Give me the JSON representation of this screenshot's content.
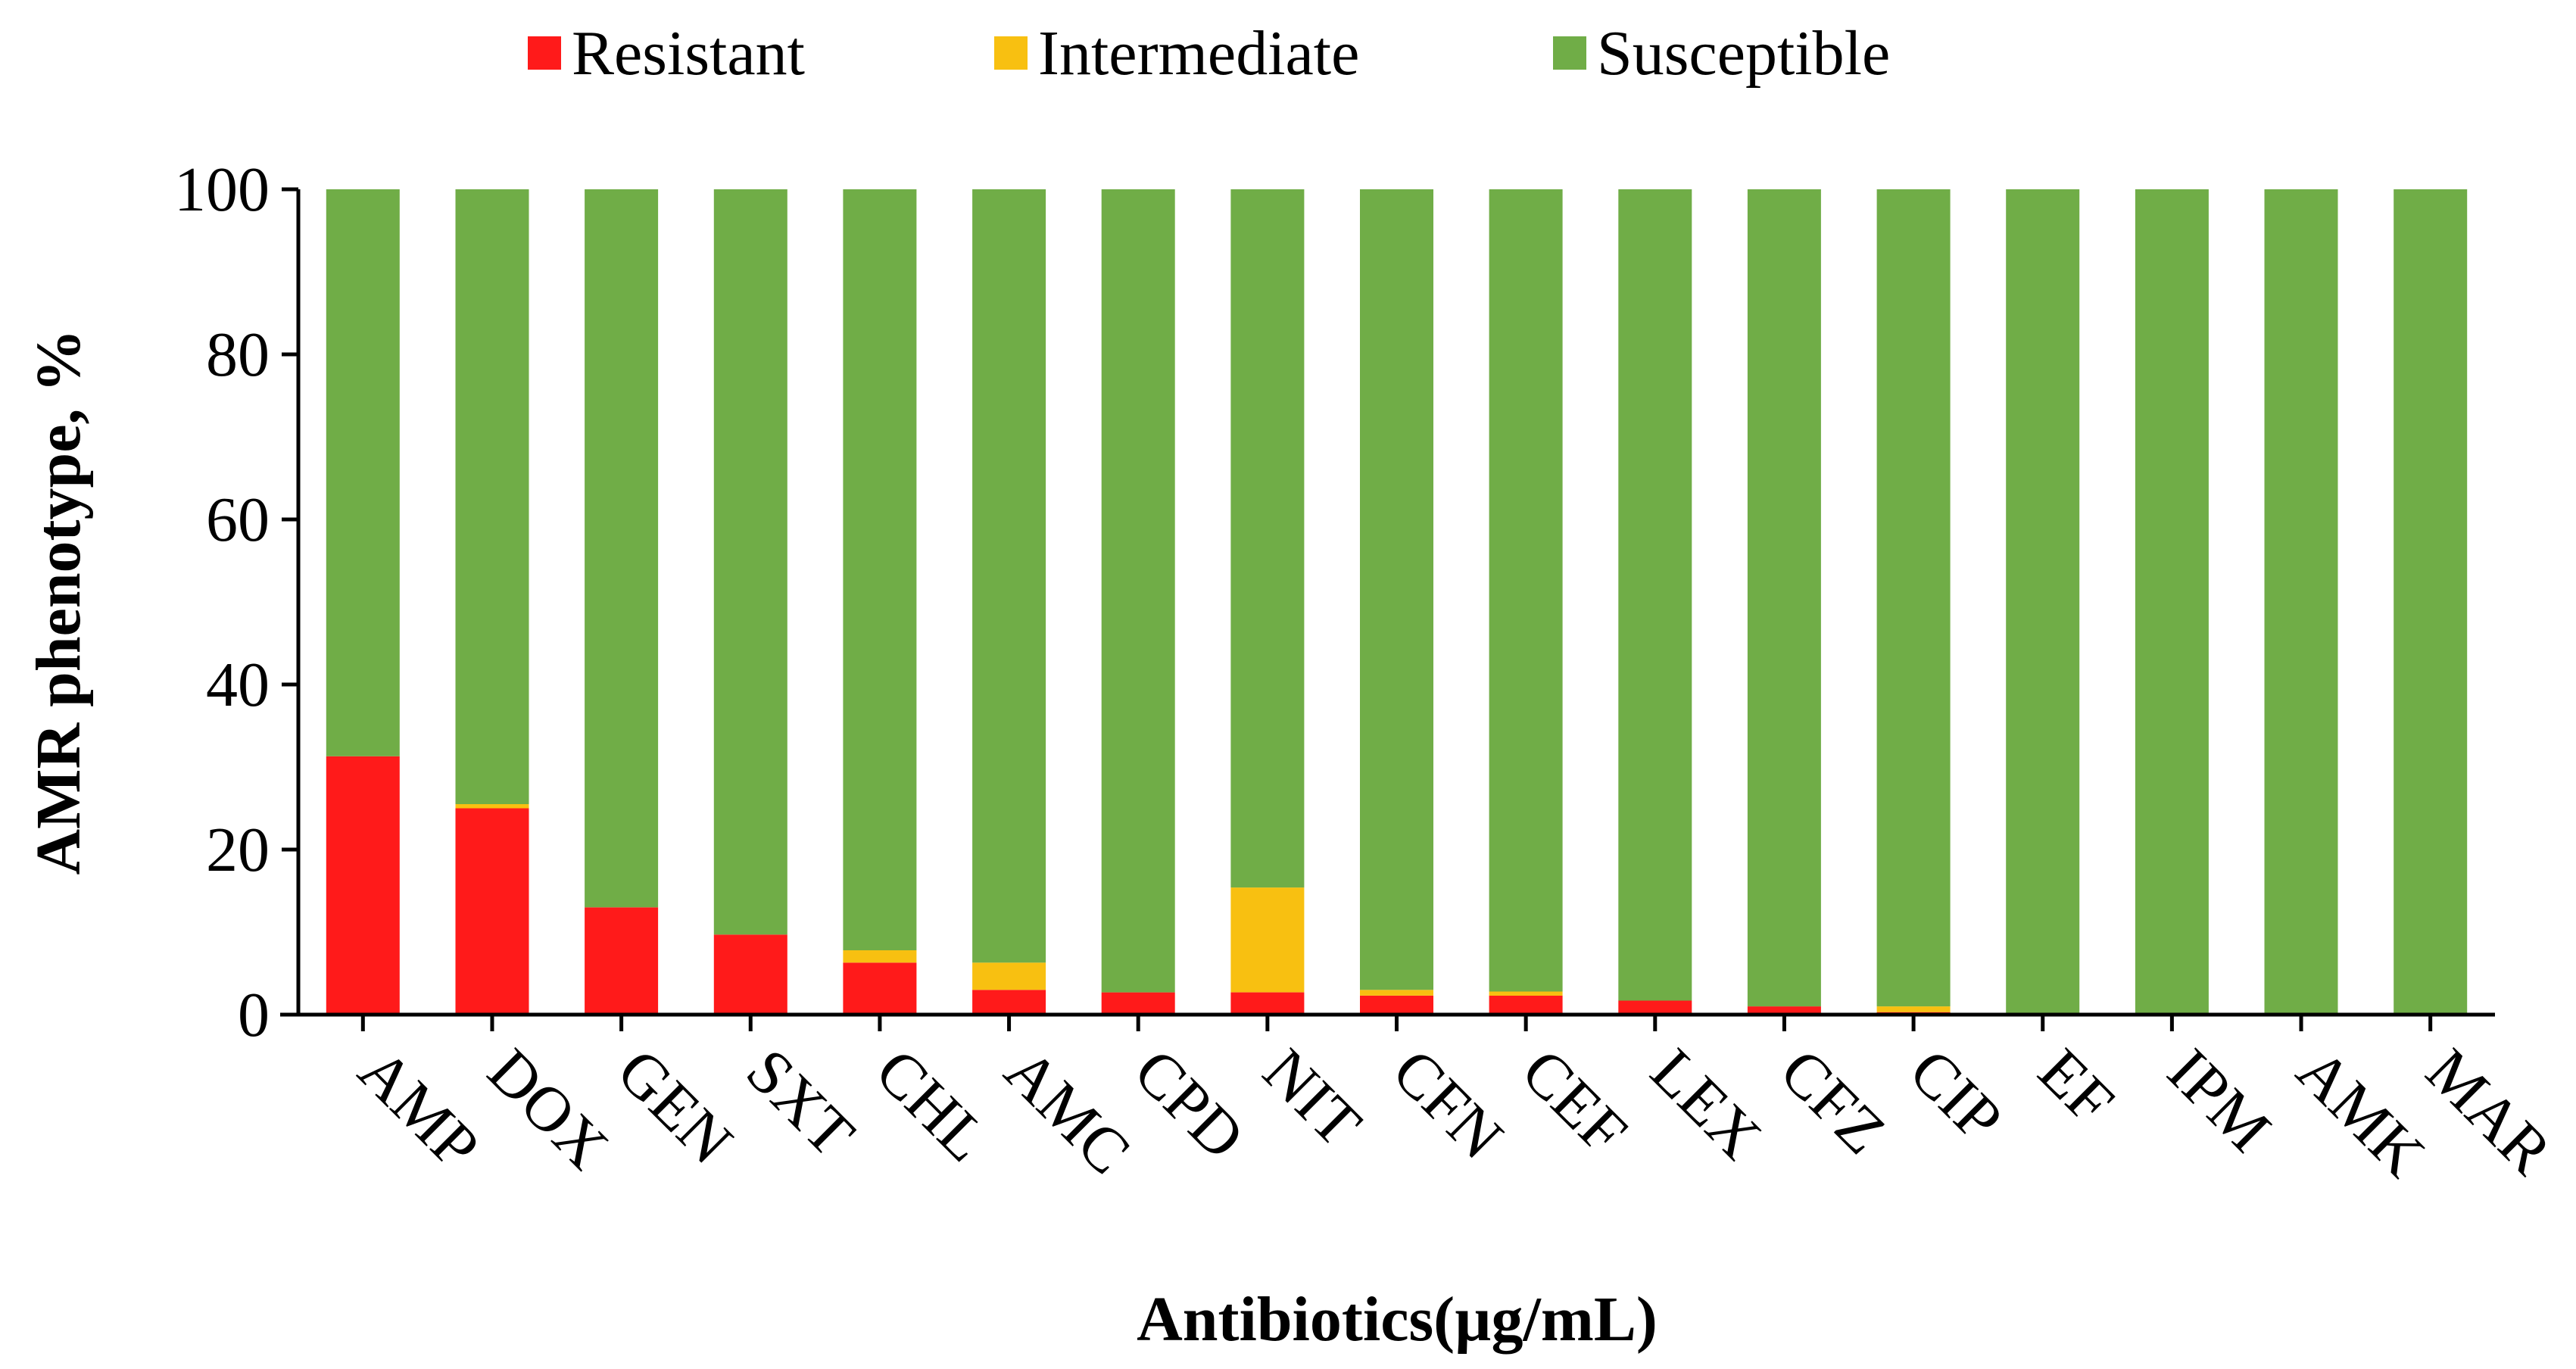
{
  "chart_data": {
    "type": "bar",
    "stacked": true,
    "title": "",
    "xlabel": "Antibiotics(µg/mL)",
    "ylabel": "AMR phenotype, %",
    "ylim": [
      0,
      100
    ],
    "yticks": [
      "0",
      "20",
      "40",
      "60",
      "80",
      "100"
    ],
    "legend_position": "top-center",
    "categories": [
      "AMP",
      "DOX",
      "GEN",
      "SXT",
      "CHL",
      "AMC",
      "CPD",
      "NIT",
      "CFN",
      "CEF",
      "LEX",
      "CFZ",
      "CIP",
      "EF",
      "IPM",
      "AMK",
      "MAR"
    ],
    "series": [
      {
        "name": "Resistant",
        "color": "#ff1a1a",
        "values": [
          31.3,
          25.0,
          13.0,
          9.7,
          6.3,
          3.0,
          2.7,
          2.7,
          2.3,
          2.3,
          1.7,
          1.0,
          0.3,
          0,
          0,
          0,
          0
        ]
      },
      {
        "name": "Intermediate",
        "color": "#f8c011",
        "values": [
          0,
          0.5,
          0,
          0,
          1.5,
          3.3,
          0,
          12.7,
          0.7,
          0.5,
          0,
          0,
          0.7,
          0,
          0,
          0,
          0
        ]
      },
      {
        "name": "Susceptible",
        "color": "#70ad47",
        "values": [
          68.7,
          74.5,
          87.0,
          90.3,
          92.2,
          93.7,
          97.3,
          84.6,
          97.0,
          97.2,
          98.3,
          99.0,
          99.0,
          100,
          100,
          100,
          100
        ]
      }
    ]
  }
}
